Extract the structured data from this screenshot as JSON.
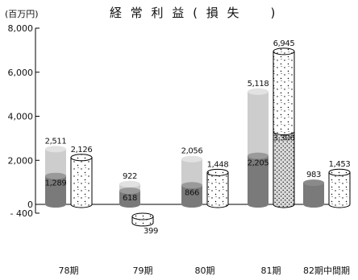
{
  "chart_data": {
    "type": "bar",
    "title": "経 常 利 益 ( 損 失　　)",
    "unit_label": "(百万円)",
    "categories": [
      "78期",
      "79期",
      "80期",
      "81期",
      "82期中間期"
    ],
    "y_ticks": [
      "8,000",
      "6,000",
      "4,000",
      "2,000",
      "0",
      "- 400"
    ],
    "y_tick_values": [
      8000,
      6000,
      4000,
      2000,
      0,
      -400
    ],
    "ylim": [
      -400,
      8000
    ],
    "grid": false,
    "groups": [
      {
        "category": "78期",
        "gray_bar": {
          "lower": 1289,
          "upper_label": "2,511",
          "lower_label": "1,289",
          "total": 2511
        },
        "dotted_bar": {
          "total": 2126,
          "label": "2,126"
        }
      },
      {
        "category": "79期",
        "gray_bar": {
          "lower": 618,
          "upper_label": "922",
          "lower_label": "618",
          "total": 922
        },
        "dotted_bar": {
          "total": -399,
          "label": "399"
        }
      },
      {
        "category": "80期",
        "gray_bar": {
          "lower": 866,
          "upper_label": "2,056",
          "lower_label": "866",
          "total": 2056
        },
        "dotted_bar": {
          "total": 1448,
          "label": "1,448"
        }
      },
      {
        "category": "81期",
        "gray_bar": {
          "lower": 2205,
          "upper_label": "5,118",
          "lower_label": "2,205",
          "total": 5118
        },
        "dotted_bar": {
          "lower": 3306,
          "lower_label": "3,306",
          "total": 6945,
          "label": "6,945"
        }
      },
      {
        "category": "82期中間期",
        "gray_bar": {
          "lower": 983,
          "upper_label": "983",
          "total": 983
        },
        "dotted_bar": {
          "total": 1453,
          "label": "1,453"
        }
      }
    ],
    "colors": {
      "gray_lower": "#7a7a7a",
      "gray_upper": "#cdcdcd",
      "dotted_fill": "#ffffff",
      "dotted_dense_fill": "#d9d9d9",
      "outline": "#000000"
    }
  }
}
